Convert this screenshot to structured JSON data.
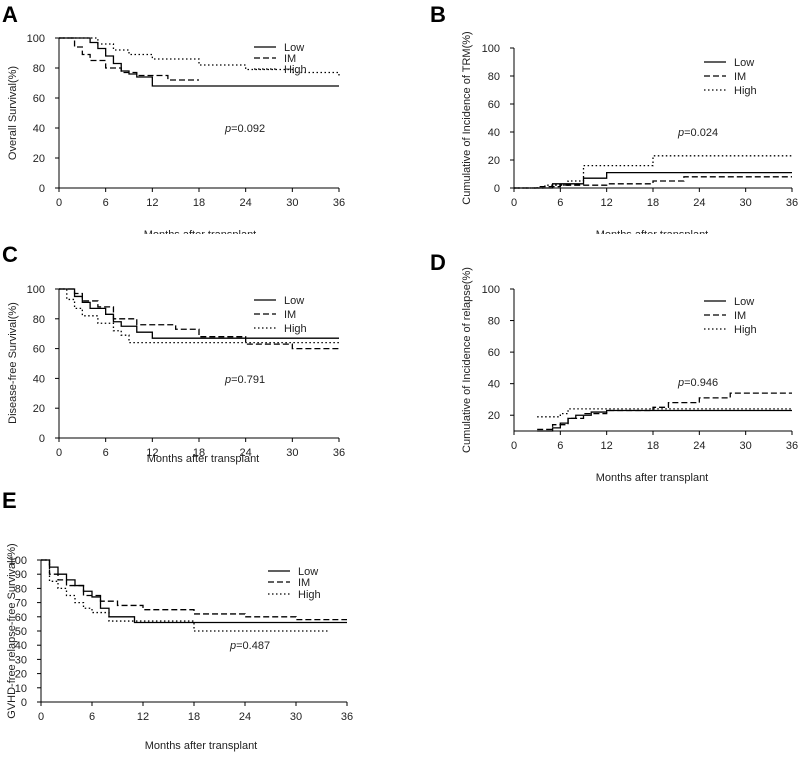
{
  "chart_data": [
    {
      "panel": "A",
      "type": "line",
      "title": "",
      "xlabel": "Months after transplant",
      "ylabel": "Overall Survival(%)",
      "xlim": [
        0,
        36
      ],
      "ylim": [
        0,
        100
      ],
      "xticks": [
        "0",
        "6",
        "12",
        "18",
        "24",
        "30",
        "36"
      ],
      "yticks": [
        "0",
        "20",
        "40",
        "60",
        "80",
        "100"
      ],
      "annotation": "p=0.092",
      "legend": [
        "Low",
        "IM",
        "High"
      ],
      "series": [
        {
          "name": "Low",
          "style": "solid",
          "x": [
            0,
            4,
            5,
            6,
            7,
            8,
            9,
            10,
            12,
            36
          ],
          "y": [
            100,
            97,
            93,
            88,
            83,
            78,
            76,
            74,
            68,
            68
          ]
        },
        {
          "name": "IM",
          "style": "dashed",
          "x": [
            0,
            2,
            3,
            4,
            6,
            8,
            10,
            14,
            18
          ],
          "y": [
            100,
            94,
            89,
            85,
            80,
            77,
            75,
            72,
            72
          ]
        },
        {
          "name": "High",
          "style": "dotted",
          "x": [
            0,
            5,
            7,
            9,
            12,
            18,
            24,
            30,
            36
          ],
          "y": [
            100,
            96,
            92,
            89,
            86,
            82,
            79,
            77,
            75
          ]
        }
      ]
    },
    {
      "panel": "B",
      "type": "line",
      "title": "",
      "xlabel": "Months after transplant",
      "ylabel": "Cumulative of Incidence of TRM(%)",
      "xlim": [
        0,
        36
      ],
      "ylim": [
        0,
        100
      ],
      "xticks": [
        "0",
        "6",
        "12",
        "18",
        "24",
        "30",
        "36"
      ],
      "yticks": [
        "0",
        "20",
        "40",
        "60",
        "80",
        "100"
      ],
      "annotation": "p=0.024",
      "legend": [
        "Low",
        "IM",
        "High"
      ],
      "series": [
        {
          "name": "Low",
          "style": "solid",
          "x": [
            0,
            5,
            9,
            12,
            36
          ],
          "y": [
            0,
            3,
            7,
            11,
            11
          ]
        },
        {
          "name": "IM",
          "style": "dashed",
          "x": [
            0,
            3,
            6,
            12,
            18,
            22,
            36
          ],
          "y": [
            0,
            1,
            2,
            3,
            5,
            8,
            8
          ]
        },
        {
          "name": "High",
          "style": "dotted",
          "x": [
            0,
            4,
            7,
            9,
            18,
            36
          ],
          "y": [
            0,
            2,
            5,
            16,
            23,
            23
          ]
        }
      ]
    },
    {
      "panel": "C",
      "type": "line",
      "title": "",
      "xlabel": "Months after transplant",
      "ylabel": "Disease-free Survival(%)",
      "xlim": [
        0,
        36
      ],
      "ylim": [
        0,
        100
      ],
      "xticks": [
        "0",
        "6",
        "12",
        "18",
        "24",
        "30",
        "36"
      ],
      "yticks": [
        "0",
        "20",
        "40",
        "60",
        "80",
        "100"
      ],
      "annotation": "p=0.791",
      "legend": [
        "Low",
        "IM",
        "High"
      ],
      "series": [
        {
          "name": "Low",
          "style": "solid",
          "x": [
            0,
            2,
            3,
            4,
            6,
            7,
            8,
            10,
            12,
            36
          ],
          "y": [
            100,
            95,
            91,
            87,
            83,
            78,
            75,
            71,
            67,
            67
          ]
        },
        {
          "name": "IM",
          "style": "dashed",
          "x": [
            0,
            2,
            3,
            5,
            7,
            10,
            15,
            18,
            24,
            30,
            36
          ],
          "y": [
            100,
            97,
            92,
            88,
            80,
            76,
            73,
            68,
            63,
            60,
            60
          ]
        },
        {
          "name": "High",
          "style": "dotted",
          "x": [
            0,
            1,
            2,
            3,
            5,
            7,
            8,
            9,
            36
          ],
          "y": [
            100,
            93,
            87,
            82,
            77,
            72,
            69,
            64,
            64
          ]
        }
      ]
    },
    {
      "panel": "D",
      "type": "line",
      "title": "",
      "xlabel": "Months after transplant",
      "ylabel": "Cumulative of Incidence of relapse(%)",
      "xlim": [
        0,
        36
      ],
      "ylim": [
        10,
        100
      ],
      "xticks": [
        "0",
        "6",
        "12",
        "18",
        "24",
        "30",
        "36"
      ],
      "yticks": [
        "20",
        "40",
        "60",
        "80",
        "100"
      ],
      "annotation": "p=0.946",
      "legend": [
        "Low",
        "IM",
        "High"
      ],
      "series": [
        {
          "name": "Low",
          "style": "solid",
          "x": [
            3,
            5,
            6,
            7,
            8,
            10,
            12,
            36
          ],
          "y": [
            10,
            12,
            15,
            18,
            20,
            22,
            23,
            23
          ]
        },
        {
          "name": "IM",
          "style": "dashed",
          "x": [
            3,
            5,
            7,
            9,
            12,
            18,
            20,
            24,
            28,
            36
          ],
          "y": [
            11,
            14,
            18,
            21,
            23,
            25,
            28,
            31,
            34,
            34
          ]
        },
        {
          "name": "High",
          "style": "dotted",
          "x": [
            3,
            6,
            7,
            12,
            36
          ],
          "y": [
            19,
            21,
            24,
            24,
            24
          ]
        }
      ]
    },
    {
      "panel": "E",
      "type": "line",
      "title": "",
      "xlabel": "Months after transplant",
      "ylabel": "GVHD-free relapse-free Survival(%)",
      "xlim": [
        0,
        36
      ],
      "ylim": [
        0,
        100
      ],
      "xticks": [
        "0",
        "6",
        "12",
        "18",
        "24",
        "30",
        "36"
      ],
      "yticks": [
        "0",
        "10",
        "20",
        "30",
        "40",
        "50",
        "60",
        "70",
        "80",
        "90",
        "100"
      ],
      "annotation": "p=0.487",
      "legend": [
        "Low",
        "IM",
        "High"
      ],
      "series": [
        {
          "name": "Low",
          "style": "solid",
          "x": [
            0,
            1,
            2,
            3,
            4,
            5,
            6,
            7,
            8,
            11,
            36
          ],
          "y": [
            100,
            95,
            90,
            86,
            82,
            78,
            74,
            66,
            60,
            56,
            56
          ]
        },
        {
          "name": "IM",
          "style": "dashed",
          "x": [
            0,
            1,
            2,
            3,
            5,
            7,
            9,
            12,
            18,
            24,
            30,
            36
          ],
          "y": [
            100,
            90,
            86,
            82,
            75,
            71,
            68,
            65,
            62,
            60,
            58,
            58
          ]
        },
        {
          "name": "High",
          "style": "dotted",
          "x": [
            0,
            1,
            2,
            3,
            4,
            5,
            6,
            8,
            18,
            34
          ],
          "y": [
            100,
            85,
            80,
            75,
            70,
            66,
            63,
            57,
            50,
            50
          ]
        }
      ]
    }
  ]
}
